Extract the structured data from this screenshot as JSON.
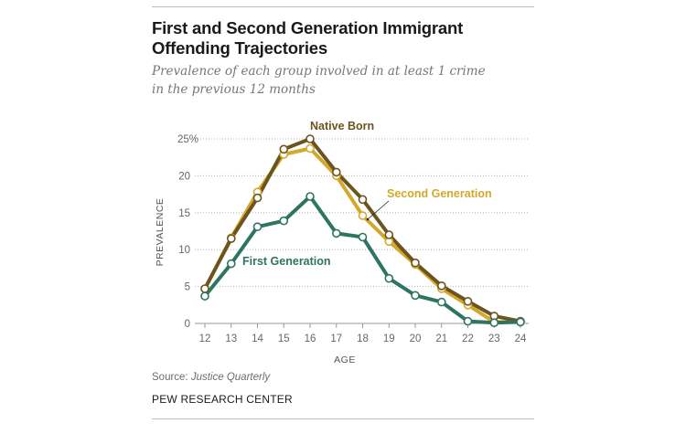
{
  "header": {
    "title_line1": "First and Second Generation Immigrant",
    "title_line2": "Offending Trajectories",
    "subtitle_line1": "Prevalence of each group involved in at least 1 crime",
    "subtitle_line2": "in the previous 12 months"
  },
  "footer": {
    "source_label": "Source:",
    "source_name": "Justice Quarterly",
    "organization": "PEW RESEARCH CENTER"
  },
  "chart_data": {
    "type": "line",
    "title": "First and Second Generation Immigrant Offending Trajectories",
    "subtitle": "Prevalence of each group involved in at least 1 crime in the previous 12 months",
    "xlabel": "AGE",
    "ylabel": "PREVALENCE",
    "x": [
      12,
      13,
      14,
      15,
      16,
      17,
      18,
      19,
      20,
      21,
      22,
      23,
      24
    ],
    "x_tick_labels": [
      "12",
      "13",
      "14",
      "15",
      "16",
      "17",
      "18",
      "19",
      "20",
      "21",
      "22",
      "23",
      "24"
    ],
    "y_ticks": [
      0,
      5,
      10,
      15,
      20,
      25
    ],
    "y_tick_labels": [
      "0",
      "5",
      "10",
      "15",
      "20",
      "25%"
    ],
    "ylim": [
      0,
      25
    ],
    "grid": true,
    "legend": "inline labels",
    "series": [
      {
        "name": "Native Born",
        "color": "#6b5420",
        "values": [
          4.7,
          11.5,
          17.0,
          23.6,
          25.0,
          20.5,
          16.8,
          12.0,
          8.2,
          5.1,
          3.0,
          1.0,
          0.3
        ]
      },
      {
        "name": "Second Generation",
        "color": "#d4a82a",
        "values": [
          4.7,
          11.6,
          17.8,
          22.9,
          23.7,
          20.0,
          14.6,
          11.1,
          8.0,
          4.7,
          2.5,
          0.2,
          0.2
        ]
      },
      {
        "name": "First Generation",
        "color": "#2e7462",
        "values": [
          3.7,
          8.1,
          13.1,
          13.9,
          17.2,
          12.2,
          11.7,
          6.1,
          3.8,
          2.9,
          0.3,
          0.1,
          0.2
        ]
      }
    ],
    "annotations": [
      "Native Born",
      "Second Generation",
      "First Generation"
    ],
    "source": "Justice Quarterly"
  }
}
